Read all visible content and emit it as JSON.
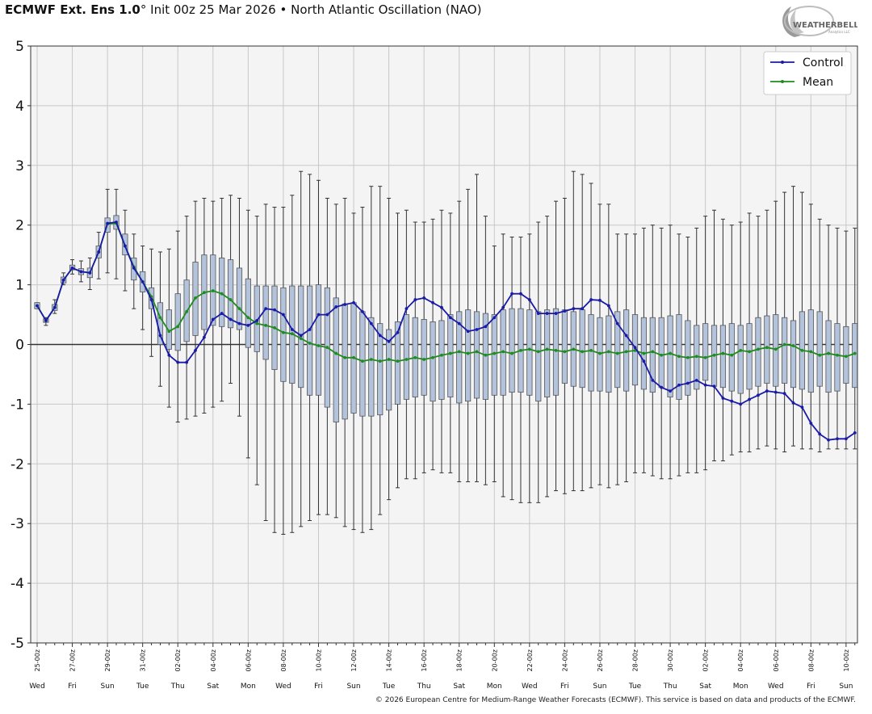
{
  "header": {
    "model": "ECMWF Ext. Ens 1.0",
    "degree": "°",
    "init": "Init 00z 25 Mar 2026",
    "bullet": "•",
    "index": "North Atlantic Oscillation (NAO)"
  },
  "logo": {
    "text": "WEATHERBELL",
    "sub": "Analytics LLC"
  },
  "footer": {
    "text": "© 2026 European Centre for Medium-Range Weather Forecasts (ECMWF). This service is based on data and products of the ECMWF."
  },
  "colors": {
    "control": "#1a1aaa",
    "mean": "#1e8c1e",
    "box": "#b4c3dc",
    "box_edge": "#555555",
    "whisker": "#333333",
    "plot_bg": "#f4f4f4",
    "grid": "#c8c8c8"
  },
  "chart_data": {
    "type": "box",
    "title": "North Atlantic Oscillation (NAO)",
    "xlabel": "",
    "ylabel": "",
    "ylim": [
      -5,
      5
    ],
    "yticks": [
      5,
      4,
      3,
      2,
      1,
      0,
      -1,
      -2,
      -3,
      -4,
      -5
    ],
    "grid": true,
    "legend": {
      "position": "top-right",
      "entries": [
        "Control",
        "Mean"
      ]
    },
    "x_date_ticks": [
      "25-00z",
      "27-00z",
      "29-00z",
      "31-00z",
      "02-00z",
      "04-00z",
      "06-00z",
      "08-00z",
      "10-00z",
      "12-00z",
      "14-00z",
      "16-00z",
      "18-00z",
      "20-00z",
      "22-00z",
      "24-00z",
      "26-00z",
      "28-00z",
      "30-00z",
      "02-00z",
      "04-00z",
      "06-00z",
      "08-00z",
      "10-00z"
    ],
    "x_day_ticks": [
      "Wed",
      "Fri",
      "Sun",
      "Tue",
      "Thu",
      "Sat",
      "Mon",
      "Wed",
      "Fri",
      "Sun",
      "Tue",
      "Thu",
      "Sat",
      "Mon",
      "Wed",
      "Fri",
      "Sun",
      "Tue",
      "Thu",
      "Sat",
      "Mon",
      "Wed",
      "Fri",
      "Sun"
    ],
    "step": "12h",
    "series": [
      {
        "name": "Control",
        "values": [
          0.65,
          0.4,
          0.62,
          1.08,
          1.28,
          1.22,
          1.2,
          1.55,
          2.03,
          2.05,
          1.65,
          1.28,
          1.05,
          0.75,
          0.15,
          -0.18,
          -0.3,
          -0.3,
          -0.1,
          0.12,
          0.42,
          0.52,
          0.42,
          0.35,
          0.32,
          0.4,
          0.6,
          0.58,
          0.5,
          0.25,
          0.15,
          0.25,
          0.5,
          0.5,
          0.63,
          0.67,
          0.7,
          0.55,
          0.35,
          0.15,
          0.05,
          0.2,
          0.6,
          0.75,
          0.78,
          0.7,
          0.62,
          0.45,
          0.35,
          0.22,
          0.25,
          0.3,
          0.45,
          0.62,
          0.85,
          0.85,
          0.75,
          0.52,
          0.52,
          0.52,
          0.56,
          0.6,
          0.6,
          0.75,
          0.74,
          0.65,
          0.35,
          0.15,
          -0.05,
          -0.28,
          -0.6,
          -0.72,
          -0.78,
          -0.68,
          -0.65,
          -0.6,
          -0.68,
          -0.7,
          -0.9,
          -0.95,
          -1.0,
          -0.92,
          -0.85,
          -0.78,
          -0.8,
          -0.82,
          -0.98,
          -1.05,
          -1.32,
          -1.5,
          -1.6,
          -1.58,
          -1.58,
          -1.48
        ]
      },
      {
        "name": "Mean",
        "values": [
          0.65,
          0.4,
          0.62,
          1.08,
          1.28,
          1.22,
          1.2,
          1.55,
          2.02,
          2.03,
          1.65,
          1.3,
          1.05,
          0.8,
          0.45,
          0.22,
          0.3,
          0.55,
          0.78,
          0.87,
          0.9,
          0.85,
          0.75,
          0.6,
          0.45,
          0.35,
          0.32,
          0.28,
          0.2,
          0.18,
          0.1,
          0.02,
          -0.02,
          -0.05,
          -0.15,
          -0.22,
          -0.22,
          -0.28,
          -0.25,
          -0.28,
          -0.25,
          -0.28,
          -0.25,
          -0.22,
          -0.25,
          -0.22,
          -0.18,
          -0.15,
          -0.12,
          -0.15,
          -0.12,
          -0.18,
          -0.15,
          -0.12,
          -0.15,
          -0.1,
          -0.08,
          -0.12,
          -0.08,
          -0.1,
          -0.12,
          -0.08,
          -0.12,
          -0.1,
          -0.15,
          -0.12,
          -0.15,
          -0.12,
          -0.1,
          -0.15,
          -0.12,
          -0.18,
          -0.15,
          -0.2,
          -0.22,
          -0.2,
          -0.22,
          -0.18,
          -0.15,
          -0.18,
          -0.1,
          -0.12,
          -0.08,
          -0.05,
          -0.08,
          0.0,
          -0.02,
          -0.1,
          -0.12,
          -0.18,
          -0.15,
          -0.18,
          -0.2,
          -0.15
        ]
      },
      {
        "name": "box_q1",
        "values": [
          0.6,
          0.37,
          0.57,
          1.03,
          1.25,
          1.17,
          1.12,
          1.45,
          1.88,
          1.93,
          1.5,
          1.08,
          0.88,
          0.6,
          0.0,
          -0.08,
          -0.1,
          0.05,
          0.15,
          0.25,
          0.32,
          0.3,
          0.28,
          0.25,
          -0.05,
          -0.12,
          -0.25,
          -0.42,
          -0.62,
          -0.65,
          -0.72,
          -0.85,
          -0.85,
          -1.05,
          -1.3,
          -1.25,
          -1.15,
          -1.2,
          -1.2,
          -1.18,
          -1.1,
          -1.0,
          -0.92,
          -0.88,
          -0.85,
          -0.95,
          -0.92,
          -0.88,
          -0.98,
          -0.95,
          -0.9,
          -0.92,
          -0.85,
          -0.85,
          -0.8,
          -0.8,
          -0.85,
          -0.95,
          -0.88,
          -0.85,
          -0.65,
          -0.7,
          -0.72,
          -0.78,
          -0.78,
          -0.8,
          -0.72,
          -0.78,
          -0.68,
          -0.75,
          -0.8,
          -0.72,
          -0.88,
          -0.92,
          -0.85,
          -0.75,
          -0.6,
          -0.7,
          -0.72,
          -0.78,
          -0.82,
          -0.75,
          -0.7,
          -0.65,
          -0.7,
          -0.65,
          -0.72,
          -0.75,
          -0.8,
          -0.7,
          -0.8,
          -0.78,
          -0.65,
          -0.72
        ]
      },
      {
        "name": "box_q3",
        "values": [
          0.7,
          0.43,
          0.67,
          1.13,
          1.33,
          1.27,
          1.28,
          1.65,
          2.12,
          2.16,
          1.85,
          1.45,
          1.22,
          0.95,
          0.7,
          0.58,
          0.85,
          1.08,
          1.38,
          1.5,
          1.5,
          1.45,
          1.42,
          1.28,
          1.1,
          0.98,
          0.98,
          0.98,
          0.95,
          0.98,
          0.98,
          0.98,
          1.0,
          0.95,
          0.78,
          0.68,
          0.7,
          0.55,
          0.45,
          0.35,
          0.25,
          0.38,
          0.5,
          0.45,
          0.42,
          0.38,
          0.4,
          0.5,
          0.55,
          0.58,
          0.55,
          0.52,
          0.5,
          0.58,
          0.6,
          0.6,
          0.58,
          0.55,
          0.58,
          0.6,
          0.58,
          0.55,
          0.58,
          0.5,
          0.45,
          0.48,
          0.55,
          0.58,
          0.5,
          0.45,
          0.45,
          0.45,
          0.48,
          0.5,
          0.4,
          0.32,
          0.35,
          0.32,
          0.32,
          0.35,
          0.32,
          0.35,
          0.45,
          0.48,
          0.5,
          0.45,
          0.4,
          0.55,
          0.58,
          0.55,
          0.4,
          0.35,
          0.3,
          0.35
        ]
      },
      {
        "name": "whisker_low",
        "values": [
          0.6,
          0.32,
          0.52,
          1.0,
          1.18,
          1.05,
          0.92,
          1.1,
          1.2,
          1.1,
          0.9,
          0.6,
          0.25,
          -0.2,
          -0.7,
          -1.05,
          -1.3,
          -1.25,
          -1.2,
          -1.15,
          -1.05,
          -0.95,
          -0.65,
          -1.2,
          -1.9,
          -2.35,
          -2.95,
          -3.15,
          -3.18,
          -3.15,
          -3.05,
          -2.95,
          -2.85,
          -2.85,
          -2.9,
          -3.05,
          -3.1,
          -3.15,
          -3.1,
          -2.85,
          -2.6,
          -2.4,
          -2.25,
          -2.25,
          -2.15,
          -2.1,
          -2.15,
          -2.15,
          -2.3,
          -2.3,
          -2.3,
          -2.35,
          -2.3,
          -2.55,
          -2.6,
          -2.65,
          -2.65,
          -2.65,
          -2.55,
          -2.45,
          -2.5,
          -2.45,
          -2.45,
          -2.4,
          -2.35,
          -2.4,
          -2.35,
          -2.3,
          -2.15,
          -2.15,
          -2.2,
          -2.25,
          -2.25,
          -2.2,
          -2.15,
          -2.15,
          -2.1,
          -1.95,
          -1.95,
          -1.85,
          -1.8,
          -1.8,
          -1.75,
          -1.7,
          -1.75,
          -1.8,
          -1.7,
          -1.75,
          -1.75,
          -1.8,
          -1.75,
          -1.75,
          -1.75,
          -1.75
        ]
      },
      {
        "name": "whisker_high",
        "values": [
          0.7,
          0.45,
          0.75,
          1.2,
          1.42,
          1.4,
          1.45,
          1.88,
          2.6,
          2.6,
          2.25,
          1.85,
          1.65,
          1.6,
          1.55,
          1.6,
          1.9,
          2.15,
          2.4,
          2.45,
          2.4,
          2.45,
          2.5,
          2.45,
          2.25,
          2.15,
          2.35,
          2.3,
          2.3,
          2.5,
          2.9,
          2.85,
          2.75,
          2.45,
          2.35,
          2.45,
          2.2,
          2.3,
          2.65,
          2.65,
          2.45,
          2.2,
          2.25,
          2.05,
          2.05,
          2.1,
          2.25,
          2.2,
          2.4,
          2.6,
          2.85,
          2.15,
          1.65,
          1.85,
          1.8,
          1.8,
          1.85,
          2.05,
          2.15,
          2.4,
          2.45,
          2.9,
          2.85,
          2.7,
          2.35,
          2.35,
          1.85,
          1.85,
          1.85,
          1.95,
          2.0,
          1.95,
          2.0,
          1.85,
          1.8,
          1.95,
          2.15,
          2.25,
          2.1,
          2.0,
          2.05,
          2.2,
          2.15,
          2.25,
          2.4,
          2.55,
          2.65,
          2.55,
          2.35,
          2.1,
          2.0,
          1.95,
          1.9,
          1.95
        ]
      }
    ]
  }
}
